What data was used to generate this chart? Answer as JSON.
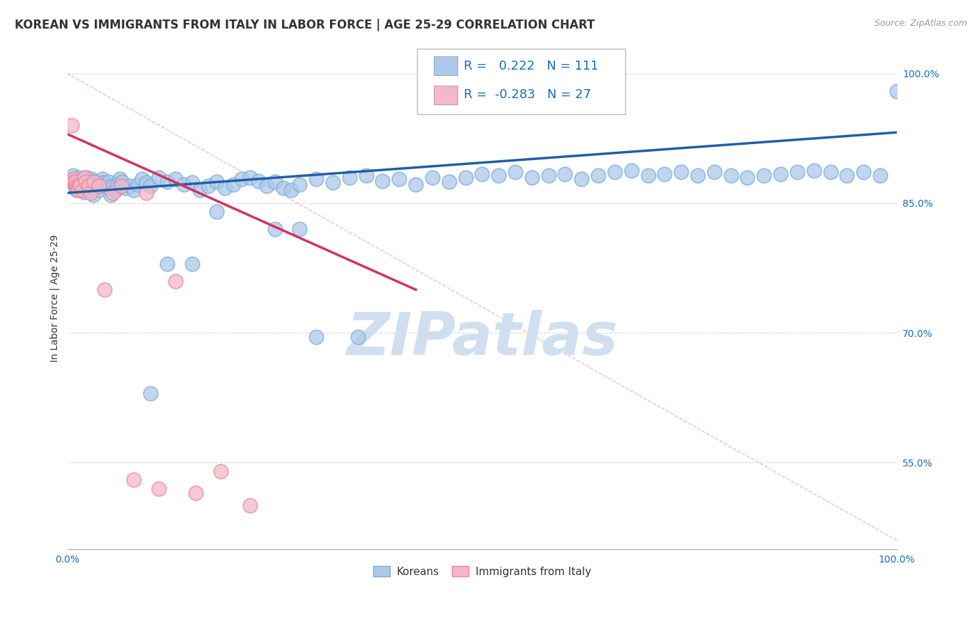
{
  "title": "KOREAN VS IMMIGRANTS FROM ITALY IN LABOR FORCE | AGE 25-29 CORRELATION CHART",
  "source": "Source: ZipAtlas.com",
  "ylabel": "In Labor Force | Age 25-29",
  "xlim": [
    0.0,
    1.0
  ],
  "ylim": [
    0.45,
    1.03
  ],
  "y_ticks": [
    0.55,
    0.7,
    0.85,
    1.0
  ],
  "y_tick_labels": [
    "55.0%",
    "70.0%",
    "85.0%",
    "100.0%"
  ],
  "legend_blue_r": "0.222",
  "legend_blue_n": "111",
  "legend_pink_r": "-0.283",
  "legend_pink_n": "27",
  "blue_color": "#adc8eb",
  "blue_edge_color": "#7aadd4",
  "blue_line_color": "#1f5fa6",
  "pink_color": "#f4b8c8",
  "pink_edge_color": "#e888a0",
  "pink_line_color": "#d43060",
  "watermark_color": "#d0dff0",
  "background_color": "#ffffff",
  "grid_color": "#d8d8d8",
  "title_fontsize": 12,
  "axis_label_fontsize": 10,
  "tick_fontsize": 10,
  "legend_fontsize": 13,
  "blue_scatter_x": [
    0.005,
    0.007,
    0.008,
    0.009,
    0.01,
    0.011,
    0.012,
    0.013,
    0.014,
    0.015,
    0.016,
    0.017,
    0.018,
    0.019,
    0.02,
    0.021,
    0.022,
    0.023,
    0.024,
    0.025,
    0.026,
    0.027,
    0.028,
    0.029,
    0.03,
    0.031,
    0.032,
    0.034,
    0.036,
    0.038,
    0.04,
    0.042,
    0.044,
    0.046,
    0.048,
    0.05,
    0.052,
    0.055,
    0.058,
    0.06,
    0.063,
    0.066,
    0.07,
    0.075,
    0.08,
    0.085,
    0.09,
    0.095,
    0.1,
    0.11,
    0.12,
    0.13,
    0.14,
    0.15,
    0.16,
    0.17,
    0.18,
    0.19,
    0.2,
    0.21,
    0.22,
    0.23,
    0.24,
    0.25,
    0.26,
    0.27,
    0.28,
    0.3,
    0.32,
    0.34,
    0.36,
    0.38,
    0.4,
    0.42,
    0.44,
    0.46,
    0.48,
    0.5,
    0.52,
    0.54,
    0.56,
    0.58,
    0.6,
    0.62,
    0.64,
    0.66,
    0.68,
    0.7,
    0.72,
    0.74,
    0.76,
    0.78,
    0.8,
    0.82,
    0.84,
    0.86,
    0.88,
    0.9,
    0.92,
    0.94,
    0.96,
    0.98,
    1.0,
    0.3,
    0.35,
    0.28,
    0.25,
    0.18,
    0.15,
    0.12,
    0.1
  ],
  "blue_scatter_y": [
    0.875,
    0.882,
    0.878,
    0.87,
    0.868,
    0.865,
    0.872,
    0.88,
    0.876,
    0.871,
    0.869,
    0.877,
    0.874,
    0.866,
    0.863,
    0.87,
    0.875,
    0.88,
    0.872,
    0.867,
    0.875,
    0.87,
    0.865,
    0.878,
    0.872,
    0.86,
    0.868,
    0.875,
    0.87,
    0.865,
    0.872,
    0.878,
    0.874,
    0.87,
    0.868,
    0.875,
    0.86,
    0.87,
    0.865,
    0.872,
    0.878,
    0.875,
    0.868,
    0.87,
    0.865,
    0.872,
    0.878,
    0.874,
    0.87,
    0.88,
    0.875,
    0.878,
    0.872,
    0.874,
    0.865,
    0.87,
    0.875,
    0.868,
    0.872,
    0.878,
    0.88,
    0.876,
    0.87,
    0.875,
    0.868,
    0.865,
    0.872,
    0.878,
    0.874,
    0.88,
    0.882,
    0.876,
    0.878,
    0.872,
    0.88,
    0.875,
    0.88,
    0.884,
    0.882,
    0.886,
    0.88,
    0.882,
    0.884,
    0.878,
    0.882,
    0.886,
    0.888,
    0.882,
    0.884,
    0.886,
    0.882,
    0.886,
    0.882,
    0.88,
    0.882,
    0.884,
    0.886,
    0.888,
    0.886,
    0.882,
    0.886,
    0.882,
    0.98,
    0.695,
    0.695,
    0.82,
    0.82,
    0.84,
    0.78,
    0.78,
    0.63
  ],
  "pink_scatter_x": [
    0.005,
    0.007,
    0.008,
    0.009,
    0.01,
    0.011,
    0.012,
    0.013,
    0.014,
    0.015,
    0.018,
    0.02,
    0.022,
    0.025,
    0.028,
    0.032,
    0.038,
    0.045,
    0.055,
    0.065,
    0.08,
    0.095,
    0.11,
    0.13,
    0.155,
    0.185,
    0.22
  ],
  "pink_scatter_y": [
    0.94,
    0.878,
    0.875,
    0.872,
    0.875,
    0.87,
    0.868,
    0.865,
    0.872,
    0.87,
    0.865,
    0.88,
    0.875,
    0.87,
    0.862,
    0.875,
    0.87,
    0.75,
    0.862,
    0.87,
    0.53,
    0.862,
    0.52,
    0.76,
    0.515,
    0.54,
    0.5
  ],
  "blue_trend_x": [
    0.0,
    1.0
  ],
  "blue_trend_y": [
    0.862,
    0.932
  ],
  "pink_trend_x": [
    0.0,
    0.42
  ],
  "pink_trend_y": [
    0.93,
    0.75
  ],
  "ref_line_x": [
    0.0,
    1.0
  ],
  "ref_line_y": [
    1.0,
    0.46
  ]
}
